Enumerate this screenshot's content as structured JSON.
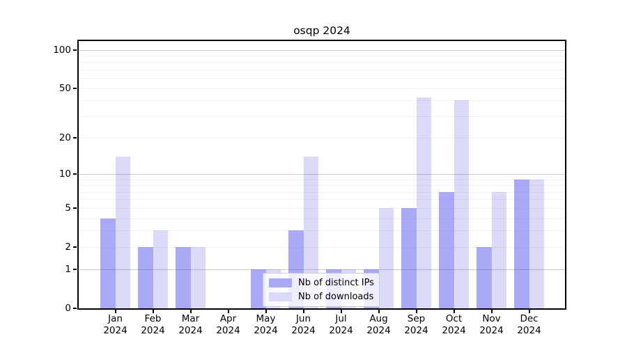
{
  "chart_data": {
    "type": "bar",
    "title": "osqp 2024",
    "categories": [
      "Jan",
      "Feb",
      "Mar",
      "Apr",
      "May",
      "Jun",
      "Jul",
      "Aug",
      "Sep",
      "Oct",
      "Nov",
      "Dec"
    ],
    "category_year_label": "2024",
    "series": [
      {
        "name": "Nb of distinct IPs",
        "color": "#a9a9f7",
        "values": [
          4,
          2,
          2,
          0,
          1,
          3,
          1,
          1,
          5,
          7,
          2,
          9
        ]
      },
      {
        "name": "Nb of downloads",
        "color": "#dbdbf8",
        "values": [
          14,
          3,
          2,
          0,
          1,
          14,
          1,
          5,
          42,
          40,
          7,
          9
        ]
      }
    ],
    "yticks": [
      0,
      1,
      2,
      5,
      10,
      20,
      50,
      100
    ],
    "ylim": [
      0,
      100
    ],
    "yscale": "symlog-log1p",
    "grid": "horizontal, minor ticks 2-9 and 20-90, major at 1/10/100",
    "legend_position": "lower center"
  }
}
